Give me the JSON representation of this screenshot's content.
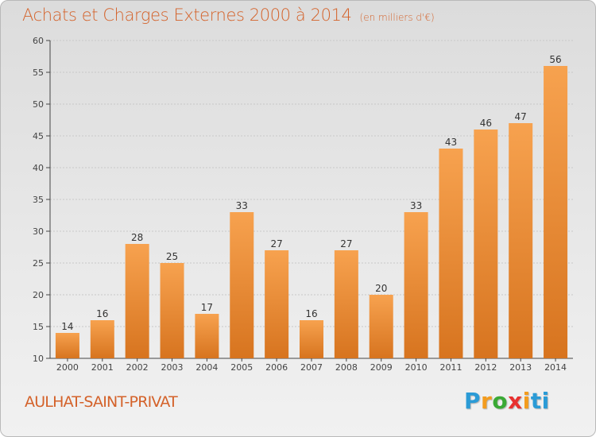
{
  "header": {
    "title": "Achats et Charges Externes 2000 à 2014",
    "subtitle": "(en milliers d'€)"
  },
  "footer": {
    "commune": "AULHAT-SAINT-PRIVAT",
    "logo_text": "Proxiti",
    "logo_letters": [
      "P",
      "r",
      "o",
      "x",
      "i",
      "ti"
    ]
  },
  "colors": {
    "title": "#d4622a",
    "bar_top": "#f7a24f",
    "bar_bottom": "#d7741f",
    "grid": "#c8c8c8",
    "axis": "#444444"
  },
  "chart_data": {
    "type": "bar",
    "title": "Achats et Charges Externes 2000 à 2014",
    "subtitle": "(en milliers d'€)",
    "xlabel": "",
    "ylabel": "",
    "categories": [
      "2000",
      "2001",
      "2002",
      "2003",
      "2004",
      "2005",
      "2006",
      "2007",
      "2008",
      "2009",
      "2010",
      "2011",
      "2012",
      "2013",
      "2014"
    ],
    "values": [
      14,
      16,
      28,
      25,
      17,
      33,
      27,
      16,
      27,
      20,
      33,
      43,
      46,
      47,
      56
    ],
    "ylim": [
      10,
      60
    ],
    "yticks": [
      10,
      15,
      20,
      25,
      30,
      35,
      40,
      45,
      50,
      55,
      60
    ],
    "grid": true
  }
}
